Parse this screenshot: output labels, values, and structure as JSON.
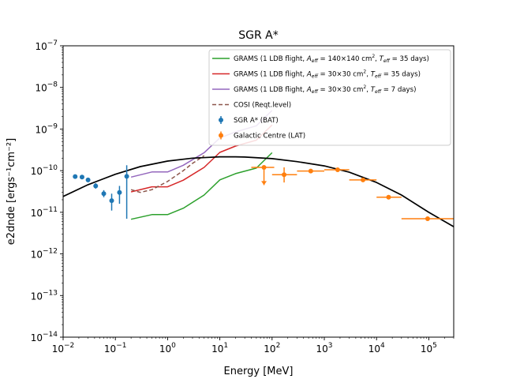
{
  "chart_data": {
    "type": "line",
    "title": "SGR A*",
    "xlabel": "Energy [MeV]",
    "ylabel": "e2dnde [ergs⁻¹cm⁻²]",
    "xscale": "log",
    "yscale": "log",
    "xlim": [
      0.01,
      300000
    ],
    "ylim": [
      1e-14,
      1e-07
    ],
    "xtick_labels": [
      {
        "base": "10",
        "exp": "−2",
        "value": 0.01
      },
      {
        "base": "10",
        "exp": "−1",
        "value": 0.1
      },
      {
        "base": "10",
        "exp": "0",
        "value": 1
      },
      {
        "base": "10",
        "exp": "1",
        "value": 10
      },
      {
        "base": "10",
        "exp": "2",
        "value": 100
      },
      {
        "base": "10",
        "exp": "3",
        "value": 1000
      },
      {
        "base": "10",
        "exp": "4",
        "value": 10000
      },
      {
        "base": "10",
        "exp": "5",
        "value": 100000
      }
    ],
    "ytick_labels": [
      {
        "base": "10",
        "exp": "−14",
        "value": 1e-14
      },
      {
        "base": "10",
        "exp": "−13",
        "value": 1e-13
      },
      {
        "base": "10",
        "exp": "−12",
        "value": 1e-12
      },
      {
        "base": "10",
        "exp": "−11",
        "value": 1e-11
      },
      {
        "base": "10",
        "exp": "−10",
        "value": 1e-10
      },
      {
        "base": "10",
        "exp": "−9",
        "value": 1e-09
      },
      {
        "base": "10",
        "exp": "−8",
        "value": 1e-08
      },
      {
        "base": "10",
        "exp": "−7",
        "value": 1e-07
      }
    ],
    "legend_position": "top-right",
    "grid": false,
    "series": [
      {
        "name": "GRAMS (1 LDB flight, A_eff = 140×140 cm², T_eff = 35 days)",
        "legend_parts": [
          "GRAMS (1 LDB flight, ",
          "A",
          "eff",
          " = 140×140 cm",
          "2",
          ", ",
          "T",
          "eff",
          " = 35 days)"
        ],
        "kind": "line",
        "color": "#2ca02c",
        "dash": "",
        "x": [
          0.2,
          0.5,
          1,
          2,
          5,
          10,
          20,
          50,
          100
        ],
        "y": [
          6.8e-12,
          8.8e-12,
          8.8e-12,
          1.25e-11,
          2.6e-11,
          6e-11,
          8.5e-11,
          1.15e-10,
          2.7e-10
        ]
      },
      {
        "name": "GRAMS (1 LDB flight, A_eff = 30×30 cm², T_eff = 35 days)",
        "legend_parts": [
          "GRAMS (1 LDB flight, ",
          "A",
          "eff",
          " = 30×30 cm",
          "2",
          ", ",
          "T",
          "eff",
          " = 35 days)"
        ],
        "kind": "line",
        "color": "#d62728",
        "dash": "",
        "x": [
          0.2,
          0.5,
          1,
          2,
          5,
          10,
          20,
          50,
          100
        ],
        "y": [
          3.1e-11,
          4.1e-11,
          4.1e-11,
          5.9e-11,
          1.2e-10,
          2.75e-10,
          3.9e-10,
          5.4e-10,
          1.25e-09
        ]
      },
      {
        "name": "GRAMS (1 LDB flight, A_eff = 30×30 cm², T_eff = 7 days)",
        "legend_parts": [
          "GRAMS (1 LDB flight, ",
          "A",
          "eff",
          " = 30×30 cm",
          "2",
          ", ",
          "T",
          "eff",
          " = 7 days)"
        ],
        "kind": "line",
        "color": "#9467bd",
        "dash": "",
        "x": [
          0.2,
          0.5,
          1,
          2,
          5,
          10,
          20,
          50,
          100
        ],
        "y": [
          7e-11,
          9.3e-11,
          9.3e-11,
          1.35e-10,
          2.7e-10,
          6.1e-10,
          8.5e-10,
          1.2e-09,
          2.8e-09
        ]
      },
      {
        "name": "COSI (Reqt.level)",
        "legend_parts": [
          "COSI (Reqt.level)"
        ],
        "kind": "line",
        "color": "#8c564b",
        "dash": "5,3",
        "x": [
          0.2,
          0.3,
          0.5,
          1,
          2,
          3,
          5
        ],
        "y": [
          3.5e-11,
          3e-11,
          3.5e-11,
          5.5e-11,
          1e-10,
          1.5e-10,
          2.3e-10
        ]
      },
      {
        "name": "model",
        "kind": "curve",
        "color": "#000000",
        "dash": "",
        "x": [
          0.01,
          0.03,
          0.1,
          0.3,
          1,
          3,
          10,
          20,
          30,
          100,
          300,
          1000,
          3000,
          10000,
          30000,
          100000,
          300000
        ],
        "y": [
          2.4e-11,
          4.6e-11,
          8.2e-11,
          1.25e-10,
          1.7e-10,
          2e-10,
          2.15e-10,
          2.15e-10,
          2.12e-10,
          1.95e-10,
          1.65e-10,
          1.3e-10,
          9.2e-11,
          5.2e-11,
          2.6e-11,
          1e-11,
          4.5e-12
        ]
      },
      {
        "name": "SGR A* (BAT)",
        "legend_parts": [
          "SGR A* (BAT)"
        ],
        "kind": "errorbar",
        "color": "#1f77b4",
        "points": [
          {
            "x": 0.017,
            "y": 7.2e-11,
            "ylo": 6.6e-11,
            "yhi": 7.8e-11
          },
          {
            "x": 0.023,
            "y": 7e-11,
            "ylo": 6.4e-11,
            "yhi": 7.6e-11
          },
          {
            "x": 0.03,
            "y": 6e-11,
            "ylo": 5.3e-11,
            "yhi": 6.8e-11
          },
          {
            "x": 0.042,
            "y": 4.3e-11,
            "ylo": 3.7e-11,
            "yhi": 5e-11
          },
          {
            "x": 0.06,
            "y": 2.8e-11,
            "ylo": 2.3e-11,
            "yhi": 3.4e-11
          },
          {
            "x": 0.085,
            "y": 1.9e-11,
            "ylo": 1.1e-11,
            "yhi": 2.8e-11
          },
          {
            "x": 0.12,
            "y": 3e-11,
            "ylo": 1.6e-11,
            "yhi": 4.3e-11
          },
          {
            "x": 0.165,
            "y": 7.3e-11,
            "ylo": 7e-12,
            "yhi": 1.35e-10
          }
        ]
      },
      {
        "name": "Galactic Centre (LAT)",
        "legend_parts": [
          "Galactic Centre (LAT)"
        ],
        "kind": "errorbar",
        "color": "#ff7f0e",
        "points": [
          {
            "x": 70,
            "y": 1.2e-10,
            "xlo": 40,
            "xhi": 110,
            "upper_limit": true,
            "arrow_to": 4.5e-11
          },
          {
            "x": 170,
            "y": 8e-11,
            "xlo": 100,
            "xhi": 300,
            "ylo": 5.2e-11,
            "yhi": 1.2e-10
          },
          {
            "x": 550,
            "y": 9.8e-11,
            "xlo": 300,
            "xhi": 1000,
            "ylo": 9e-11,
            "yhi": 1.05e-10
          },
          {
            "x": 1800,
            "y": 1.05e-10,
            "xlo": 1000,
            "xhi": 3000,
            "ylo": 1e-10,
            "yhi": 1.1e-10
          },
          {
            "x": 5500,
            "y": 6e-11,
            "xlo": 3000,
            "xhi": 10000,
            "ylo": 5.5e-11,
            "yhi": 6.5e-11
          },
          {
            "x": 17000,
            "y": 2.3e-11,
            "xlo": 10000,
            "xhi": 30000,
            "ylo": 2.1e-11,
            "yhi": 2.5e-11
          },
          {
            "x": 95000,
            "y": 7e-12,
            "xlo": 30000,
            "xhi": 300000,
            "ylo": 6.5e-12,
            "yhi": 7.5e-12
          }
        ]
      }
    ]
  }
}
